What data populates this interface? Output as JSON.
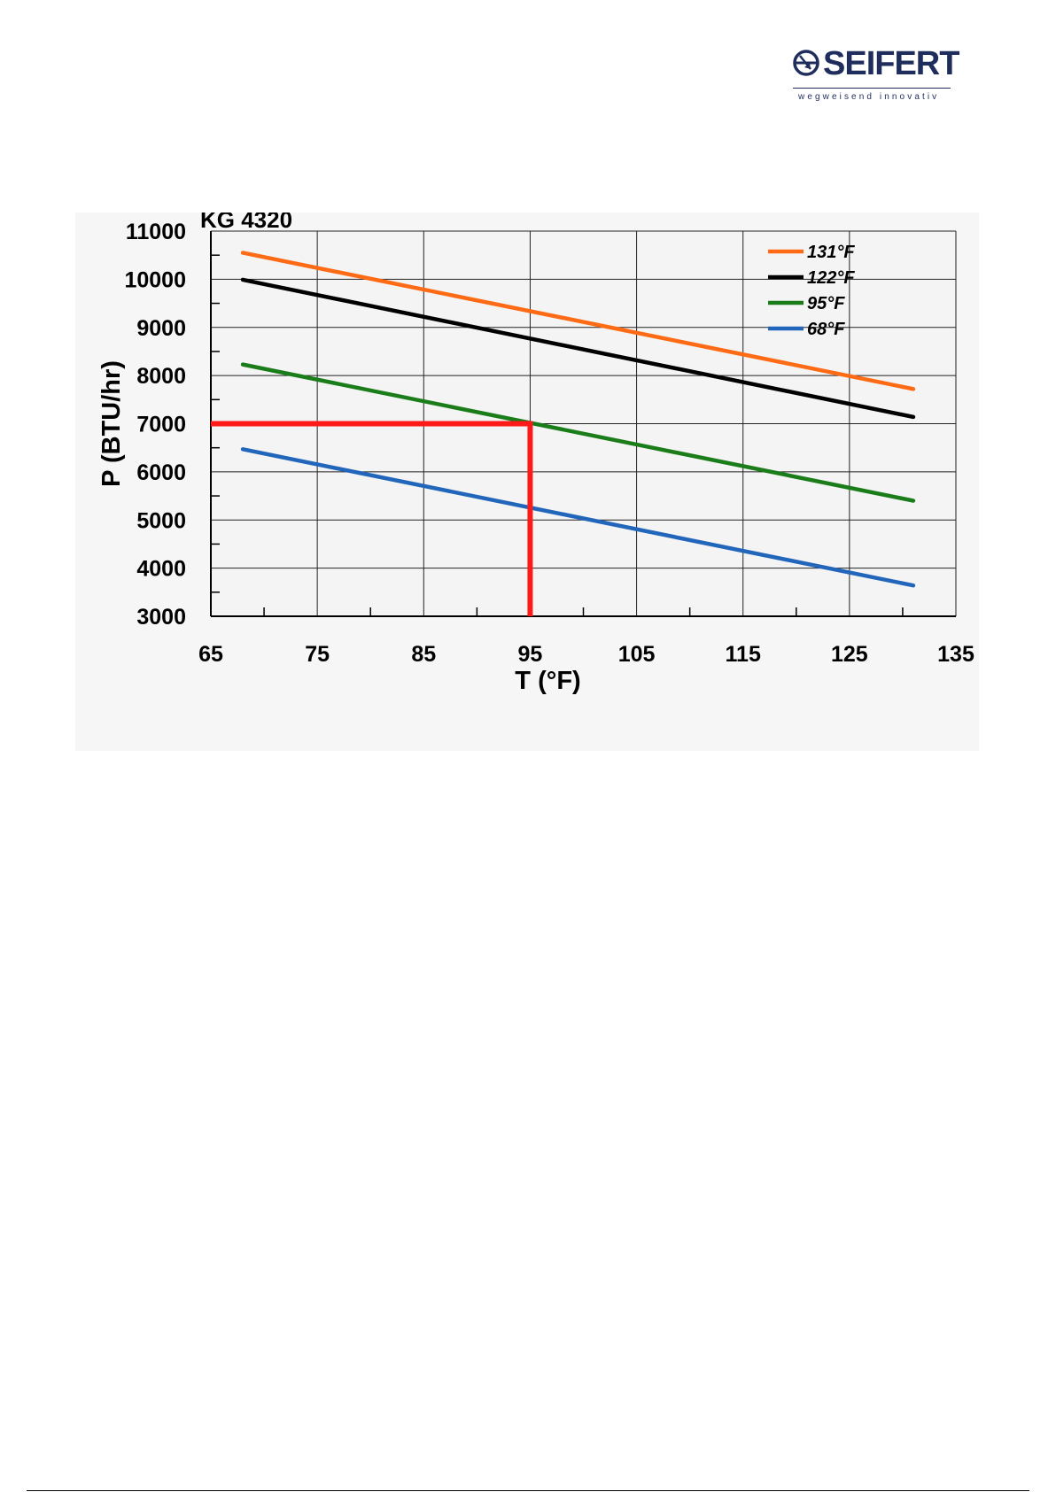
{
  "brand": {
    "name": "SEIFERT",
    "tagline": "wegweisend innovativ",
    "color": "#1f2d5c"
  },
  "chart_data": {
    "type": "line",
    "title": "KG 4320",
    "xlabel": "T (°F)",
    "ylabel": "P (BTU/hr)",
    "xlim": [
      65,
      135
    ],
    "ylim": [
      3000,
      11000
    ],
    "xticks": [
      65,
      75,
      85,
      95,
      105,
      115,
      125,
      135
    ],
    "yticks": [
      3000,
      4000,
      5000,
      6000,
      7000,
      8000,
      9000,
      10000,
      11000
    ],
    "x_minor_step": 5,
    "y_minor_step": 500,
    "grid": true,
    "legend_position": "top-right",
    "series": [
      {
        "name": "131°F",
        "color": "#ff6a14",
        "x": [
          68,
          131
        ],
        "y": [
          10550,
          7720
        ]
      },
      {
        "name": "122°F",
        "color": "#000000",
        "x": [
          68,
          131
        ],
        "y": [
          9990,
          7140
        ]
      },
      {
        "name": "95°F",
        "color": "#1a7d1a",
        "x": [
          68,
          131
        ],
        "y": [
          8230,
          5400
        ]
      },
      {
        "name": "68°F",
        "color": "#2266bb",
        "x": [
          68,
          131
        ],
        "y": [
          6470,
          3640
        ]
      }
    ],
    "reference_line": {
      "color": "#ff1a1a",
      "x": 95,
      "y": 7000
    }
  }
}
